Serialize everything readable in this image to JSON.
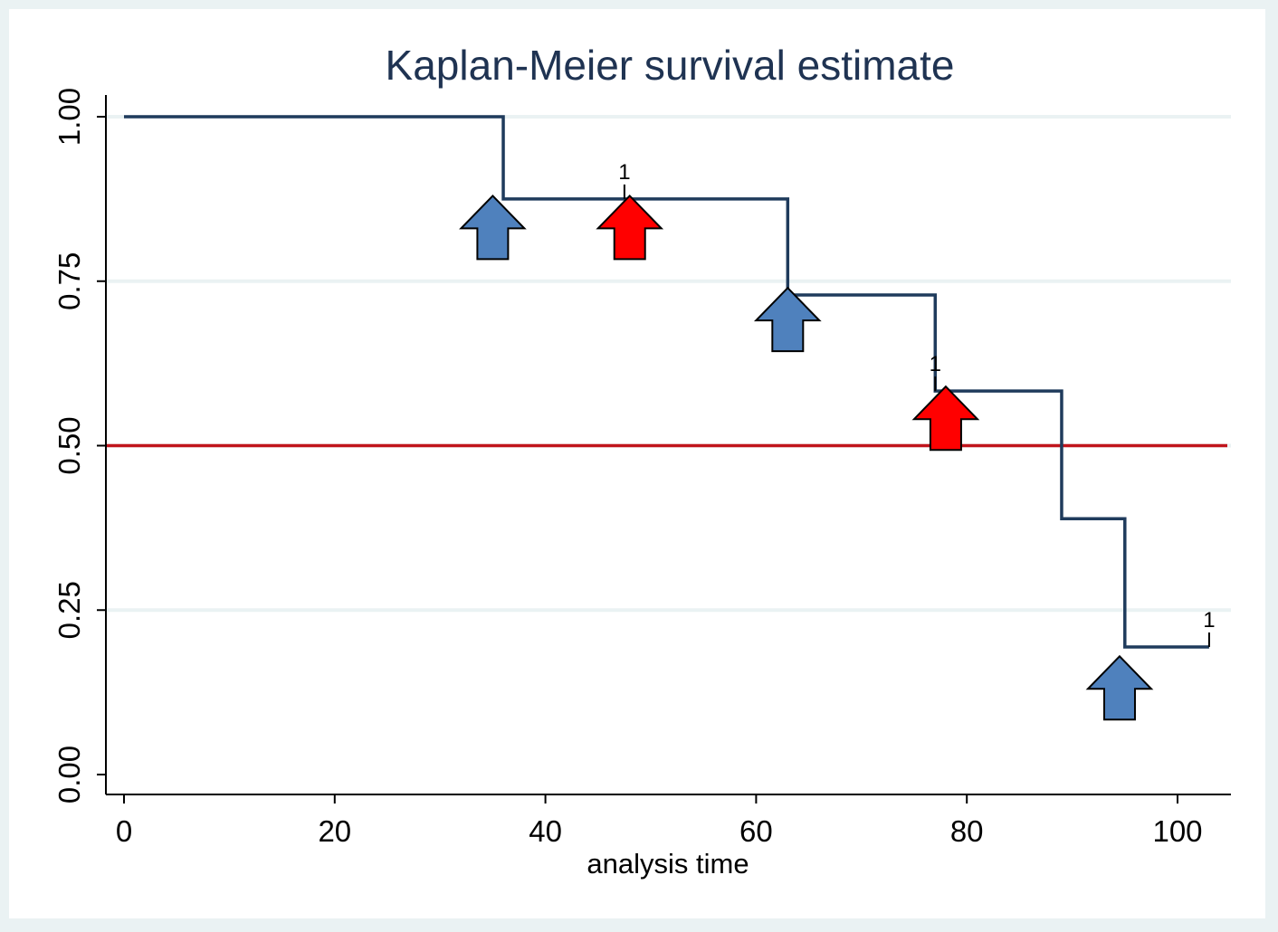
{
  "chart_data": {
    "type": "line",
    "title": "Kaplan-Meier survival estimate",
    "xlabel": "analysis time",
    "ylabel": "",
    "xlim": [
      0,
      105
    ],
    "ylim": [
      0,
      1
    ],
    "x_ticks": [
      0,
      20,
      40,
      60,
      80,
      100
    ],
    "x_tick_labels": [
      "0",
      "20",
      "40",
      "60",
      "80",
      "100"
    ],
    "y_ticks": [
      0,
      0.25,
      0.5,
      0.75,
      1
    ],
    "y_tick_labels": [
      "0.00",
      "0.25",
      "0.50",
      "0.75",
      "1.00"
    ],
    "grid": "horizontal",
    "series": [
      {
        "name": "",
        "step": true,
        "x": [
          0,
          36,
          63,
          77,
          89,
          95,
          103
        ],
        "y": [
          1.0,
          0.875,
          0.729,
          0.583,
          0.389,
          0.194,
          0.194
        ]
      }
    ],
    "censored": [
      {
        "x": 47.5,
        "y": 0.875,
        "label": "1"
      },
      {
        "x": 77,
        "y": 0.583,
        "label": "1"
      },
      {
        "x": 103,
        "y": 0.194,
        "label": "1"
      }
    ],
    "reference_line": {
      "y": 0.5,
      "color": "#c0141c"
    },
    "annotations": {
      "arrows": [
        {
          "x": 35,
          "y": 0.8,
          "color": "#4f81bd"
        },
        {
          "x": 48,
          "y": 0.8,
          "color": "#ff0000"
        },
        {
          "x": 63,
          "y": 0.66,
          "color": "#4f81bd"
        },
        {
          "x": 78,
          "y": 0.51,
          "color": "#ff0000"
        },
        {
          "x": 94.5,
          "y": 0.1,
          "color": "#4f81bd"
        }
      ]
    },
    "colors": {
      "background": "#eaf2f3",
      "plot_background": "#ffffff",
      "line": "#1f3b5c",
      "gridline": "#eaf2f3",
      "title": "#1f3352"
    }
  }
}
